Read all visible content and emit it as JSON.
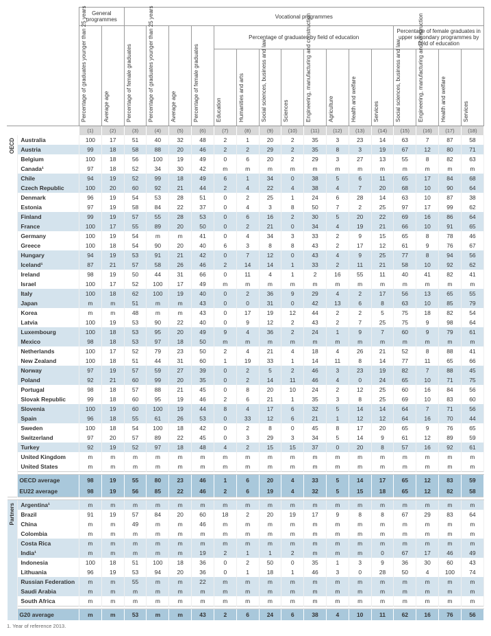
{
  "headers": {
    "group_general": "General programmes",
    "group_vocational": "Vocational programmes",
    "sub_pct_field": "Percentage of graduates by field of education",
    "sub_pct_female_field": "Percentage of female graduates in upper secondary programmes by field of education",
    "cols": [
      "Percentage of graduates younger than 25 years",
      "Average age",
      "Percentage of female graduates",
      "Percentage of graduates younger than 25 years",
      "Average age",
      "Percentage of female graduates",
      "Education",
      "Humanities and arts",
      "Social sciences, business and law",
      "Sciences",
      "Engineering, manufacturing and construction",
      "Agriculture",
      "Health and welfare",
      "Services",
      "Social sciences, business and law",
      "Engineering, manufacturing and construction",
      "Health and welfare",
      "Services"
    ],
    "col_nums": [
      "(1)",
      "(2)",
      "(3)",
      "(4)",
      "(5)",
      "(6)",
      "(7)",
      "(8)",
      "(9)",
      "(10)",
      "(11)",
      "(12)",
      "(13)",
      "(14)",
      "(15)",
      "(16)",
      "(17)",
      "(18)"
    ]
  },
  "section_labels": {
    "oecd": "OECD",
    "partners": "Partners"
  },
  "oecd_rows": [
    {
      "c": "Australia",
      "s": 0,
      "v": [
        "100",
        "17",
        "51",
        "40",
        "32",
        "48",
        "2",
        "1",
        "20",
        "2",
        "35",
        "3",
        "23",
        "14",
        "63",
        "7",
        "87",
        "58"
      ]
    },
    {
      "c": "Austria",
      "s": 1,
      "v": [
        "99",
        "18",
        "58",
        "88",
        "20",
        "46",
        "2",
        "2",
        "29",
        "2",
        "35",
        "8",
        "3",
        "19",
        "67",
        "12",
        "80",
        "71"
      ]
    },
    {
      "c": "Belgium",
      "s": 0,
      "v": [
        "100",
        "18",
        "56",
        "100",
        "19",
        "49",
        "0",
        "6",
        "20",
        "2",
        "29",
        "3",
        "27",
        "13",
        "55",
        "8",
        "82",
        "63"
      ]
    },
    {
      "c": "Canada¹",
      "s": 0,
      "v": [
        "97",
        "18",
        "52",
        "34",
        "30",
        "42",
        "m",
        "m",
        "m",
        "m",
        "m",
        "m",
        "m",
        "m",
        "m",
        "m",
        "m",
        "m"
      ]
    },
    {
      "c": "Chile",
      "s": 1,
      "v": [
        "94",
        "19",
        "52",
        "99",
        "18",
        "49",
        "6",
        "1",
        "34",
        "0",
        "38",
        "5",
        "6",
        "11",
        "65",
        "17",
        "84",
        "68"
      ]
    },
    {
      "c": "Czech Republic",
      "s": 1,
      "v": [
        "100",
        "20",
        "60",
        "92",
        "21",
        "44",
        "2",
        "4",
        "22",
        "4",
        "38",
        "4",
        "7",
        "20",
        "68",
        "10",
        "90",
        "64"
      ]
    },
    {
      "c": "Denmark",
      "s": 0,
      "v": [
        "96",
        "19",
        "54",
        "53",
        "28",
        "51",
        "0",
        "2",
        "25",
        "1",
        "24",
        "6",
        "28",
        "14",
        "63",
        "10",
        "87",
        "38"
      ]
    },
    {
      "c": "Estonia",
      "s": 0,
      "v": [
        "97",
        "19",
        "58",
        "84",
        "22",
        "37",
        "0",
        "4",
        "3",
        "8",
        "50",
        "7",
        "2",
        "25",
        "97",
        "17",
        "99",
        "62"
      ]
    },
    {
      "c": "Finland",
      "s": 1,
      "v": [
        "99",
        "19",
        "57",
        "55",
        "28",
        "53",
        "0",
        "6",
        "16",
        "2",
        "30",
        "5",
        "20",
        "22",
        "69",
        "16",
        "86",
        "64"
      ]
    },
    {
      "c": "France",
      "s": 1,
      "v": [
        "100",
        "17",
        "55",
        "89",
        "20",
        "50",
        "0",
        "2",
        "21",
        "0",
        "34",
        "4",
        "19",
        "21",
        "66",
        "10",
        "91",
        "65"
      ]
    },
    {
      "c": "Germany",
      "s": 0,
      "v": [
        "100",
        "19",
        "54",
        "m",
        "m",
        "41",
        "0",
        "4",
        "34",
        "3",
        "33",
        "2",
        "9",
        "15",
        "65",
        "8",
        "78",
        "46"
      ]
    },
    {
      "c": "Greece",
      "s": 0,
      "v": [
        "100",
        "18",
        "54",
        "90",
        "20",
        "40",
        "6",
        "3",
        "8",
        "8",
        "43",
        "2",
        "17",
        "12",
        "61",
        "9",
        "76",
        "67"
      ]
    },
    {
      "c": "Hungary",
      "s": 1,
      "v": [
        "94",
        "19",
        "53",
        "91",
        "21",
        "42",
        "0",
        "7",
        "12",
        "0",
        "43",
        "4",
        "9",
        "25",
        "77",
        "8",
        "94",
        "56"
      ]
    },
    {
      "c": "Iceland¹",
      "s": 1,
      "v": [
        "87",
        "21",
        "57",
        "58",
        "26",
        "46",
        "2",
        "14",
        "14",
        "1",
        "33",
        "2",
        "11",
        "21",
        "58",
        "10",
        "92",
        "62"
      ]
    },
    {
      "c": "Ireland",
      "s": 0,
      "v": [
        "98",
        "19",
        "50",
        "44",
        "31",
        "66",
        "0",
        "11",
        "4",
        "1",
        "2",
        "16",
        "55",
        "11",
        "40",
        "41",
        "82",
        "41"
      ]
    },
    {
      "c": "Israel",
      "s": 0,
      "v": [
        "100",
        "17",
        "52",
        "100",
        "17",
        "49",
        "m",
        "m",
        "m",
        "m",
        "m",
        "m",
        "m",
        "m",
        "m",
        "m",
        "m",
        "m"
      ]
    },
    {
      "c": "Italy",
      "s": 1,
      "v": [
        "100",
        "18",
        "62",
        "100",
        "19",
        "40",
        "0",
        "2",
        "36",
        "9",
        "29",
        "4",
        "2",
        "17",
        "56",
        "13",
        "65",
        "55"
      ]
    },
    {
      "c": "Japan",
      "s": 1,
      "v": [
        "m",
        "m",
        "51",
        "m",
        "m",
        "43",
        "0",
        "0",
        "31",
        "0",
        "42",
        "13",
        "6",
        "8",
        "63",
        "10",
        "85",
        "79"
      ]
    },
    {
      "c": "Korea",
      "s": 0,
      "v": [
        "m",
        "m",
        "48",
        "m",
        "m",
        "43",
        "0",
        "17",
        "19",
        "12",
        "44",
        "2",
        "2",
        "5",
        "75",
        "18",
        "82",
        "54"
      ]
    },
    {
      "c": "Latvia",
      "s": 0,
      "v": [
        "100",
        "19",
        "53",
        "90",
        "22",
        "40",
        "0",
        "9",
        "12",
        "2",
        "43",
        "2",
        "7",
        "25",
        "75",
        "9",
        "98",
        "64"
      ]
    },
    {
      "c": "Luxembourg",
      "s": 1,
      "v": [
        "100",
        "18",
        "53",
        "95",
        "20",
        "49",
        "9",
        "4",
        "36",
        "2",
        "24",
        "1",
        "9",
        "7",
        "60",
        "9",
        "79",
        "61"
      ]
    },
    {
      "c": "Mexico",
      "s": 1,
      "v": [
        "98",
        "18",
        "53",
        "97",
        "18",
        "50",
        "m",
        "m",
        "m",
        "m",
        "m",
        "m",
        "m",
        "m",
        "m",
        "m",
        "m",
        "m"
      ]
    },
    {
      "c": "Netherlands",
      "s": 0,
      "v": [
        "100",
        "17",
        "52",
        "79",
        "23",
        "50",
        "2",
        "4",
        "21",
        "4",
        "18",
        "4",
        "26",
        "21",
        "52",
        "8",
        "88",
        "41"
      ]
    },
    {
      "c": "New Zealand",
      "s": 0,
      "v": [
        "100",
        "18",
        "51",
        "44",
        "31",
        "60",
        "1",
        "19",
        "33",
        "1",
        "14",
        "11",
        "8",
        "14",
        "77",
        "11",
        "65",
        "66"
      ]
    },
    {
      "c": "Norway",
      "s": 1,
      "v": [
        "97",
        "19",
        "57",
        "59",
        "27",
        "39",
        "0",
        "2",
        "5",
        "2",
        "46",
        "3",
        "23",
        "19",
        "82",
        "7",
        "88",
        "45"
      ]
    },
    {
      "c": "Poland",
      "s": 1,
      "v": [
        "92",
        "21",
        "60",
        "99",
        "20",
        "35",
        "0",
        "2",
        "14",
        "11",
        "46",
        "4",
        "0",
        "24",
        "65",
        "10",
        "71",
        "75"
      ]
    },
    {
      "c": "Portugal",
      "s": 0,
      "v": [
        "98",
        "18",
        "57",
        "88",
        "21",
        "45",
        "0",
        "8",
        "20",
        "10",
        "24",
        "2",
        "12",
        "25",
        "60",
        "16",
        "84",
        "56"
      ]
    },
    {
      "c": "Slovak Republic",
      "s": 0,
      "v": [
        "99",
        "18",
        "60",
        "95",
        "19",
        "46",
        "2",
        "6",
        "21",
        "1",
        "35",
        "3",
        "8",
        "25",
        "69",
        "10",
        "83",
        "60"
      ]
    },
    {
      "c": "Slovenia",
      "s": 1,
      "v": [
        "100",
        "19",
        "60",
        "100",
        "19",
        "44",
        "8",
        "4",
        "17",
        "6",
        "32",
        "5",
        "14",
        "14",
        "64",
        "7",
        "71",
        "56"
      ]
    },
    {
      "c": "Spain",
      "s": 1,
      "v": [
        "96",
        "18",
        "55",
        "61",
        "26",
        "53",
        "0",
        "33",
        "12",
        "6",
        "21",
        "1",
        "12",
        "12",
        "64",
        "16",
        "70",
        "44"
      ]
    },
    {
      "c": "Sweden",
      "s": 0,
      "v": [
        "100",
        "18",
        "54",
        "100",
        "18",
        "42",
        "0",
        "2",
        "8",
        "0",
        "45",
        "8",
        "17",
        "20",
        "65",
        "9",
        "76",
        "65"
      ]
    },
    {
      "c": "Switzerland",
      "s": 0,
      "v": [
        "97",
        "20",
        "57",
        "89",
        "22",
        "45",
        "0",
        "3",
        "29",
        "3",
        "34",
        "5",
        "14",
        "9",
        "61",
        "12",
        "89",
        "59"
      ]
    },
    {
      "c": "Turkey",
      "s": 1,
      "v": [
        "92",
        "19",
        "52",
        "97",
        "18",
        "48",
        "4",
        "2",
        "15",
        "15",
        "37",
        "0",
        "20",
        "8",
        "57",
        "16",
        "92",
        "61"
      ]
    },
    {
      "c": "United Kingdom",
      "s": 0,
      "v": [
        "m",
        "m",
        "m",
        "m",
        "m",
        "m",
        "m",
        "m",
        "m",
        "m",
        "m",
        "m",
        "m",
        "m",
        "m",
        "m",
        "m",
        "m"
      ]
    },
    {
      "c": "United States",
      "s": 0,
      "v": [
        "m",
        "m",
        "m",
        "m",
        "m",
        "m",
        "m",
        "m",
        "m",
        "m",
        "m",
        "m",
        "m",
        "m",
        "m",
        "m",
        "m",
        "m"
      ]
    }
  ],
  "oecd_agg": [
    {
      "c": "OECD average",
      "v": [
        "98",
        "19",
        "55",
        "80",
        "23",
        "46",
        "1",
        "6",
        "20",
        "4",
        "33",
        "5",
        "14",
        "17",
        "65",
        "12",
        "83",
        "59"
      ]
    },
    {
      "c": "EU22 average",
      "v": [
        "98",
        "19",
        "56",
        "85",
        "22",
        "46",
        "2",
        "6",
        "19",
        "4",
        "32",
        "5",
        "15",
        "18",
        "65",
        "12",
        "82",
        "58"
      ]
    }
  ],
  "partner_rows": [
    {
      "c": "Argentina¹",
      "s": 1,
      "v": [
        "m",
        "m",
        "m",
        "m",
        "m",
        "m",
        "m",
        "m",
        "m",
        "m",
        "m",
        "m",
        "m",
        "m",
        "m",
        "m",
        "m",
        "m"
      ]
    },
    {
      "c": "Brazil",
      "s": 0,
      "v": [
        "91",
        "19",
        "57",
        "84",
        "20",
        "60",
        "18",
        "2",
        "20",
        "19",
        "17",
        "9",
        "8",
        "8",
        "67",
        "29",
        "83",
        "64"
      ]
    },
    {
      "c": "China",
      "s": 0,
      "v": [
        "m",
        "m",
        "49",
        "m",
        "m",
        "46",
        "m",
        "m",
        "m",
        "m",
        "m",
        "m",
        "m",
        "m",
        "m",
        "m",
        "m",
        "m"
      ]
    },
    {
      "c": "Colombia",
      "s": 0,
      "v": [
        "m",
        "m",
        "m",
        "m",
        "m",
        "m",
        "m",
        "m",
        "m",
        "m",
        "m",
        "m",
        "m",
        "m",
        "m",
        "m",
        "m",
        "m"
      ]
    },
    {
      "c": "Costa Rica",
      "s": 1,
      "v": [
        "m",
        "m",
        "m",
        "m",
        "m",
        "m",
        "m",
        "m",
        "m",
        "m",
        "m",
        "m",
        "m",
        "m",
        "m",
        "m",
        "m",
        "m"
      ]
    },
    {
      "c": "India¹",
      "s": 1,
      "v": [
        "m",
        "m",
        "m",
        "m",
        "m",
        "19",
        "2",
        "1",
        "1",
        "2",
        "m",
        "m",
        "m",
        "0",
        "67",
        "17",
        "46",
        "49"
      ]
    },
    {
      "c": "Indonesia",
      "s": 0,
      "v": [
        "100",
        "18",
        "51",
        "100",
        "18",
        "36",
        "0",
        "2",
        "50",
        "0",
        "35",
        "1",
        "3",
        "9",
        "36",
        "30",
        "60",
        "43"
      ]
    },
    {
      "c": "Lithuania",
      "s": 0,
      "v": [
        "96",
        "19",
        "53",
        "94",
        "20",
        "36",
        "0",
        "1",
        "18",
        "1",
        "46",
        "3",
        "0",
        "28",
        "50",
        "4",
        "100",
        "74"
      ]
    },
    {
      "c": "Russian Federation",
      "s": 1,
      "v": [
        "m",
        "m",
        "55",
        "m",
        "m",
        "22",
        "m",
        "m",
        "m",
        "m",
        "m",
        "m",
        "m",
        "m",
        "m",
        "m",
        "m",
        "m"
      ]
    },
    {
      "c": "Saudi Arabia",
      "s": 1,
      "v": [
        "m",
        "m",
        "m",
        "m",
        "m",
        "m",
        "m",
        "m",
        "m",
        "m",
        "m",
        "m",
        "m",
        "m",
        "m",
        "m",
        "m",
        "m"
      ]
    },
    {
      "c": "South Africa",
      "s": 0,
      "v": [
        "m",
        "m",
        "m",
        "m",
        "m",
        "m",
        "m",
        "m",
        "m",
        "m",
        "m",
        "m",
        "m",
        "m",
        "m",
        "m",
        "m",
        "m"
      ]
    }
  ],
  "partner_agg": [
    {
      "c": "G20 average",
      "v": [
        "m",
        "m",
        "53",
        "m",
        "m",
        "43",
        "2",
        "6",
        "24",
        "6",
        "38",
        "4",
        "10",
        "11",
        "62",
        "16",
        "76",
        "56"
      ]
    }
  ],
  "footnote": "1. Year of reference 2013."
}
